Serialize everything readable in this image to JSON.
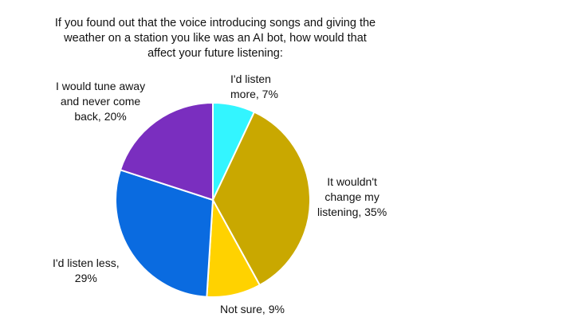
{
  "chart_data": {
    "type": "pie",
    "title_lines": [
      "If you found out that the voice introducing songs and giving the",
      "weather on a station you like was an AI bot, how would that",
      "affect your future listening:"
    ],
    "slices": [
      {
        "label_lines": [
          "I'd listen",
          "more, 7%"
        ],
        "value": 7,
        "color": "#33F5FF"
      },
      {
        "label_lines": [
          "It wouldn't",
          "change my",
          "listening, 35%"
        ],
        "value": 35,
        "color": "#C9A800"
      },
      {
        "label_lines": [
          "Not sure, 9%"
        ],
        "value": 9,
        "color": "#FFD200"
      },
      {
        "label_lines": [
          "I'd listen less,",
          "29%"
        ],
        "value": 29,
        "color": "#0A6BE0"
      },
      {
        "label_lines": [
          "I would tune away",
          "and never come",
          "back, 20%"
        ],
        "value": 20,
        "color": "#7A2EBF"
      }
    ],
    "start_angle_deg": 0,
    "direction": "clockwise",
    "legend": "none",
    "slice_border_color": "#ffffff"
  }
}
